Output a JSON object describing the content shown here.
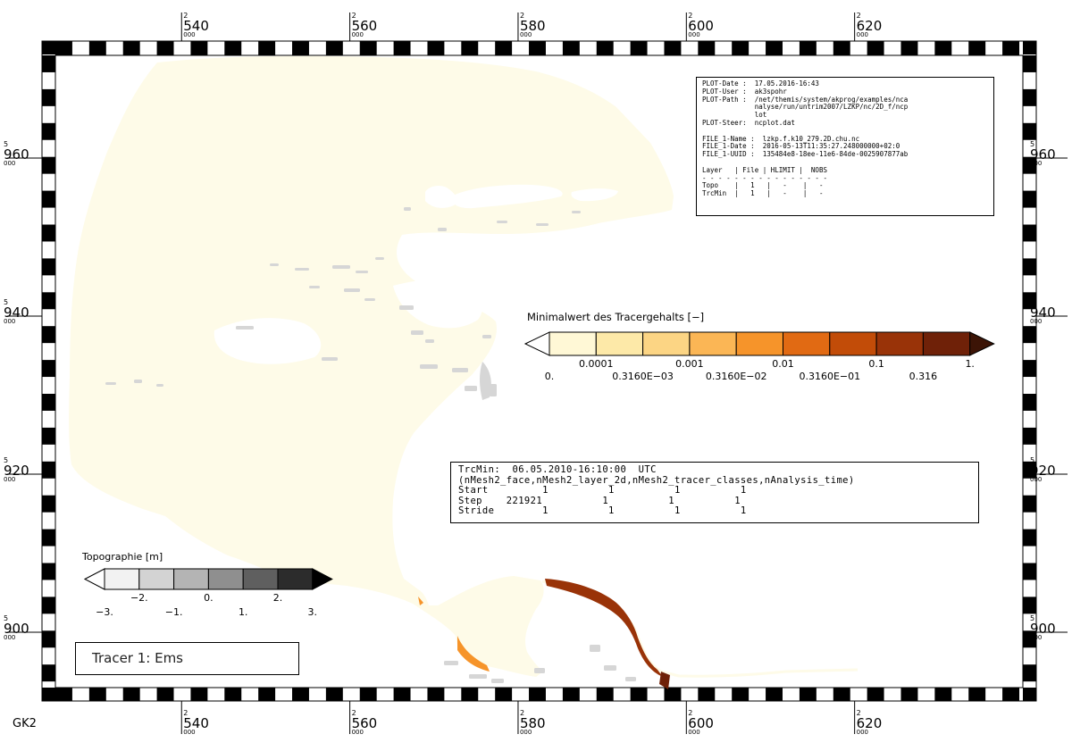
{
  "map": {
    "grid_label": "GK2",
    "x_ticks": [
      {
        "upper": "2",
        "main": "540",
        "lower": "000",
        "value": 2540000
      },
      {
        "upper": "2",
        "main": "560",
        "lower": "000",
        "value": 2560000
      },
      {
        "upper": "2",
        "main": "580",
        "lower": "000",
        "value": 2580000
      },
      {
        "upper": "2",
        "main": "600",
        "lower": "000",
        "value": 2600000
      },
      {
        "upper": "2",
        "main": "620",
        "lower": "000",
        "value": 2620000
      }
    ],
    "y_ticks": [
      {
        "upper": "5",
        "main": "960",
        "lower": "000",
        "value": 5960000
      },
      {
        "upper": "5",
        "main": "940",
        "lower": "000",
        "value": 5940000
      },
      {
        "upper": "5",
        "main": "920",
        "lower": "000",
        "value": 5920000
      },
      {
        "upper": "5",
        "main": "900",
        "lower": "000",
        "value": 5900000
      }
    ],
    "x_extent": [
      2525000,
      2640000
    ],
    "y_extent": [
      5893000,
      5973000
    ],
    "colors": {
      "water_fill": "#fefbe8",
      "land_gray": "#d6d6d6"
    }
  },
  "metadata_box": {
    "lines": [
      "PLOT-Date :  17.05.2016-16:43",
      "PLOT-User :  ak3spohr",
      "PLOT-Path :  /net/themis/system/akprog/examples/nca",
      "             nalyse/run/untrim2007/LZKP/nc/2D_f/ncp",
      "             lot",
      "PLOT-Steer:  ncplot.dat",
      "",
      "FILE_1-Name :  lzkp.f.k10_279.2D.chu.nc",
      "FILE_1-Date :  2016-05-13T11:35:27.248000000+02:0",
      "FILE_1-UUID :  135484e8-18ee-11e6-84de-0025907877ab",
      "",
      "Layer   | File | HLIMIT |  NOBS",
      "- - - - - - - - - - - - - - - -",
      "Topo    |   1   |   -    |   -",
      "TrcMin  |   1   |   -    |   -"
    ]
  },
  "tracer_legend": {
    "title": "Minimalwert des Tracergehalts [−]",
    "colors": [
      "#ffffff",
      "#fff8d6",
      "#fde9a8",
      "#fcd584",
      "#fbb655",
      "#f6942a",
      "#e16a13",
      "#c24c08",
      "#993308",
      "#6f2108",
      "#3c1406"
    ],
    "upper_labels": [
      "0.0001",
      "0.001",
      "0.01",
      "0.1",
      "1."
    ],
    "lower_labels": [
      "0.",
      "0.3160E−03",
      "0.3160E−02",
      "0.3160E−01",
      "0.316"
    ]
  },
  "trc_info_box": {
    "lines": [
      "TrcMin:  06.05.2010-16:10:00  UTC",
      "(nMesh2_face,nMesh2_layer_2d,nMesh2_tracer_classes,nAnalysis_time)",
      "Start         1          1          1          1",
      "Step    221921          1          1          1",
      "Stride        1          1          1          1"
    ]
  },
  "topo_legend": {
    "title": "Topographie [m]",
    "colors": [
      "#ffffff",
      "#f2f2f2",
      "#d3d3d3",
      "#b4b4b4",
      "#8f8f8f",
      "#5f5f5f",
      "#2c2c2c",
      "#000000"
    ],
    "upper_labels": [
      "−2.",
      "0.",
      "2."
    ],
    "lower_labels": [
      "−3.",
      "−1.",
      "1.",
      "3."
    ]
  },
  "tracer_label": {
    "text": "Tracer 1: Ems"
  }
}
